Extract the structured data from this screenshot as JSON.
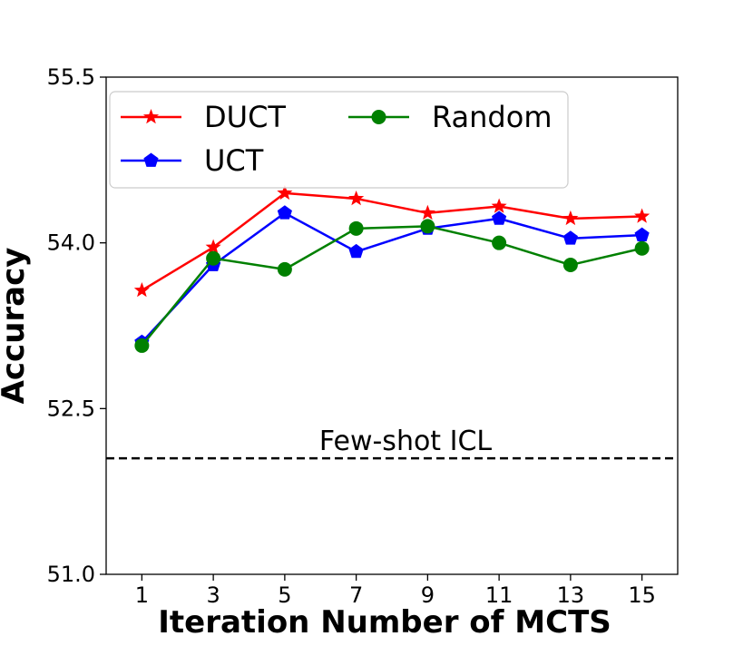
{
  "chart_data": {
    "type": "line",
    "title": "",
    "xlabel": "Iteration Number of MCTS",
    "ylabel": "Accuracy",
    "x": [
      1,
      3,
      5,
      7,
      9,
      11,
      13,
      15
    ],
    "xlim": [
      0,
      16
    ],
    "ylim": [
      51.0,
      55.5
    ],
    "yticks": [
      51.0,
      52.5,
      54.0,
      55.5
    ],
    "ytick_labels": [
      "51.0",
      "52.5",
      "54.0",
      "55.5"
    ],
    "xtick_labels": [
      "1",
      "3",
      "5",
      "7",
      "9",
      "11",
      "13",
      "15"
    ],
    "grid": false,
    "legend_position": "top-left",
    "series": [
      {
        "name": "DUCT",
        "color": "#ff0000",
        "marker": "star",
        "values": [
          53.57,
          53.96,
          54.45,
          54.4,
          54.27,
          54.33,
          54.22,
          54.24
        ]
      },
      {
        "name": "UCT",
        "color": "#0000ff",
        "marker": "pentagon",
        "values": [
          53.1,
          53.8,
          54.27,
          53.92,
          54.13,
          54.22,
          54.04,
          54.07
        ]
      },
      {
        "name": "Random",
        "color": "#008000",
        "marker": "circle",
        "values": [
          53.07,
          53.86,
          53.76,
          54.13,
          54.15,
          54.0,
          53.8,
          53.95
        ]
      }
    ],
    "reference_line": {
      "label": "Few-shot ICL",
      "value": 52.05,
      "style": "dashed",
      "color": "#000000"
    }
  }
}
